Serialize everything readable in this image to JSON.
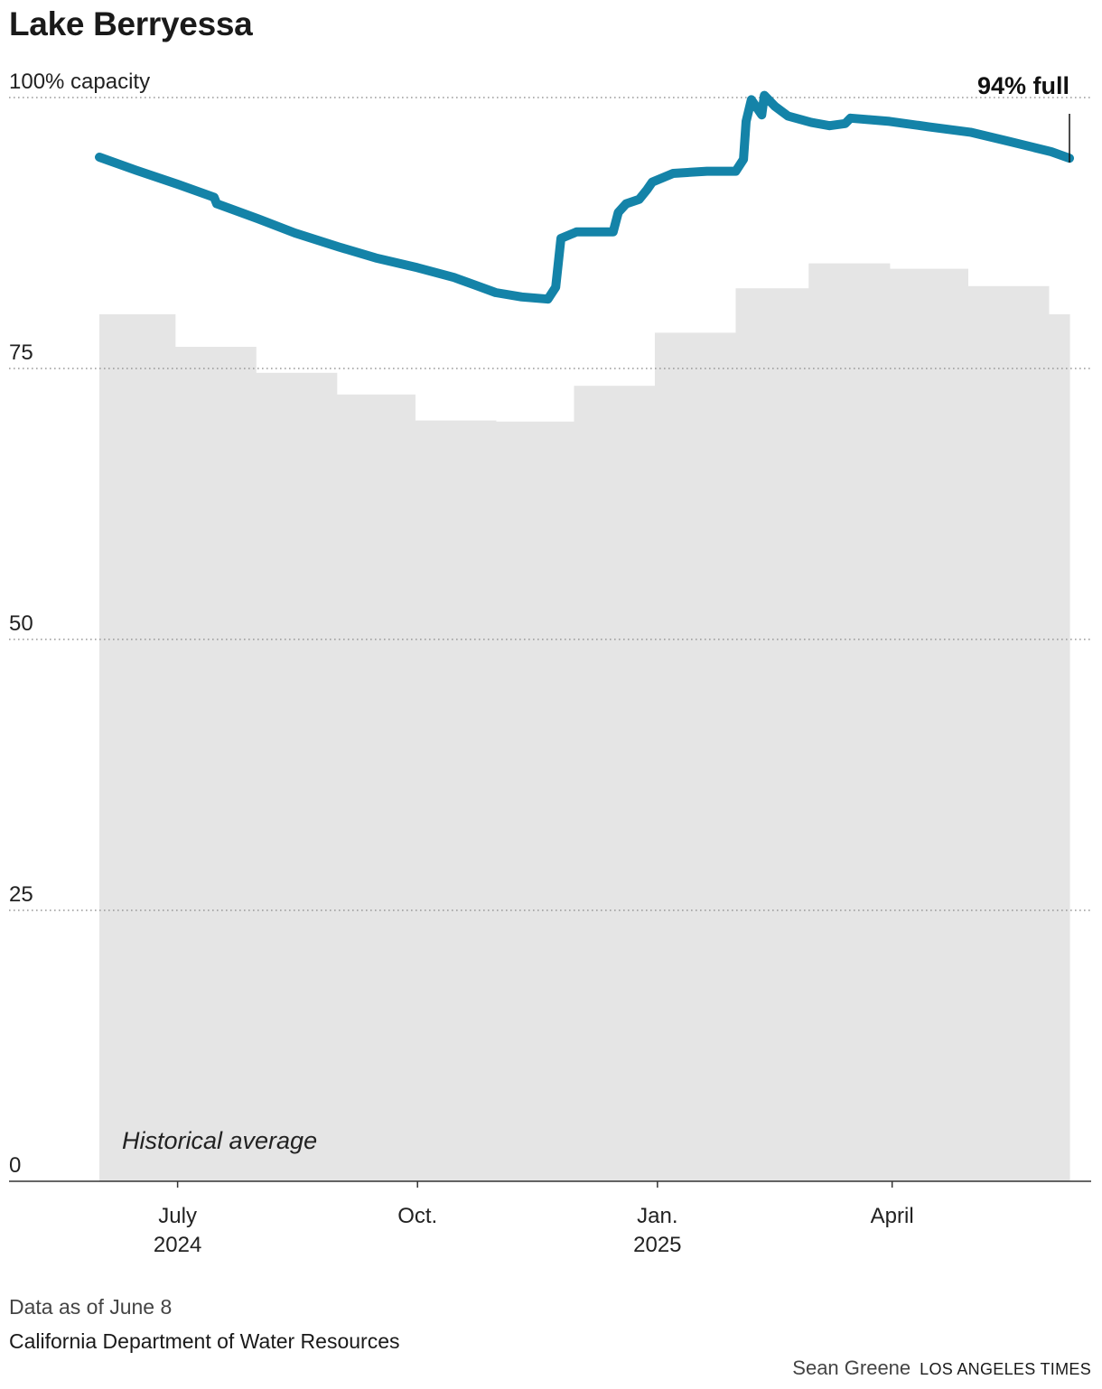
{
  "chart_data": {
    "type": "area",
    "title": "Lake Berryessa",
    "y_axis": {
      "range": [
        0,
        100
      ],
      "ticks": [
        {
          "value": 100,
          "label": "100% capacity"
        },
        {
          "value": 75,
          "label": "75"
        },
        {
          "value": 50,
          "label": "50"
        },
        {
          "value": 25,
          "label": "25"
        },
        {
          "value": 0,
          "label": "0"
        }
      ],
      "grid": "dotted"
    },
    "x_axis": {
      "range": [
        "2024-06-01",
        "2025-06-08"
      ],
      "ticks": [
        {
          "date": "2024-07-01",
          "line1": "July",
          "line2": "2024"
        },
        {
          "date": "2024-10-01",
          "line1": "Oct.",
          "line2": ""
        },
        {
          "date": "2025-01-01",
          "line1": "Jan.",
          "line2": "2025"
        },
        {
          "date": "2025-04-01",
          "line1": "April",
          "line2": ""
        }
      ]
    },
    "historical_average": {
      "label": "Historical average",
      "color": "#e5e5e5",
      "steps": [
        {
          "start": "2024-06-01",
          "end": "2024-06-30",
          "value": 80.0
        },
        {
          "start": "2024-06-30",
          "end": "2024-07-31",
          "value": 77.0
        },
        {
          "start": "2024-07-31",
          "end": "2024-08-31",
          "value": 74.6
        },
        {
          "start": "2024-08-31",
          "end": "2024-09-30",
          "value": 72.6
        },
        {
          "start": "2024-09-30",
          "end": "2024-10-31",
          "value": 70.2
        },
        {
          "start": "2024-10-31",
          "end": "2024-11-30",
          "value": 70.1
        },
        {
          "start": "2024-11-30",
          "end": "2024-12-31",
          "value": 73.4
        },
        {
          "start": "2024-12-31",
          "end": "2025-01-31",
          "value": 78.3
        },
        {
          "start": "2025-01-31",
          "end": "2025-02-28",
          "value": 82.4
        },
        {
          "start": "2025-02-28",
          "end": "2025-03-31",
          "value": 84.7
        },
        {
          "start": "2025-03-31",
          "end": "2025-04-30",
          "value": 84.2
        },
        {
          "start": "2025-04-30",
          "end": "2025-05-31",
          "value": 82.6
        },
        {
          "start": "2025-05-31",
          "end": "2025-06-08",
          "value": 80.0
        }
      ]
    },
    "series": [
      {
        "color": "#1483a8",
        "points": [
          [
            "2024-06-01",
            94.5
          ],
          [
            "2024-06-15",
            93.3
          ],
          [
            "2024-07-01",
            92.0
          ],
          [
            "2024-07-15",
            90.8
          ],
          [
            "2024-07-16",
            90.2
          ],
          [
            "2024-08-01",
            88.8
          ],
          [
            "2024-08-15",
            87.5
          ],
          [
            "2024-09-01",
            86.2
          ],
          [
            "2024-09-15",
            85.2
          ],
          [
            "2024-10-01",
            84.3
          ],
          [
            "2024-10-15",
            83.4
          ],
          [
            "2024-10-23",
            82.7
          ],
          [
            "2024-10-31",
            82.0
          ],
          [
            "2024-11-10",
            81.6
          ],
          [
            "2024-11-20",
            81.4
          ],
          [
            "2024-11-23",
            82.5
          ],
          [
            "2024-11-25",
            87.0
          ],
          [
            "2024-12-01",
            87.6
          ],
          [
            "2024-12-15",
            87.6
          ],
          [
            "2024-12-17",
            89.4
          ],
          [
            "2024-12-20",
            90.2
          ],
          [
            "2024-12-25",
            90.6
          ],
          [
            "2024-12-28",
            91.5
          ],
          [
            "2024-12-30",
            92.2
          ],
          [
            "2025-01-07",
            93.0
          ],
          [
            "2025-01-20",
            93.2
          ],
          [
            "2025-01-31",
            93.2
          ],
          [
            "2025-02-03",
            94.3
          ],
          [
            "2025-02-04",
            97.8
          ],
          [
            "2025-02-06",
            99.8
          ],
          [
            "2025-02-10",
            98.4
          ],
          [
            "2025-02-11",
            100.2
          ],
          [
            "2025-02-15",
            99.2
          ],
          [
            "2025-02-20",
            98.3
          ],
          [
            "2025-03-01",
            97.7
          ],
          [
            "2025-03-08",
            97.4
          ],
          [
            "2025-03-14",
            97.6
          ],
          [
            "2025-03-16",
            98.1
          ],
          [
            "2025-03-31",
            97.8
          ],
          [
            "2025-04-15",
            97.3
          ],
          [
            "2025-05-01",
            96.8
          ],
          [
            "2025-05-15",
            96.0
          ],
          [
            "2025-06-01",
            95.0
          ],
          [
            "2025-06-08",
            94.4
          ]
        ]
      }
    ],
    "annotation": {
      "label": "94% full",
      "date": "2025-06-08",
      "value": 94
    }
  },
  "notes": {
    "data_as_of": "Data as of June 8",
    "source": "California Department of Water Resources"
  },
  "credits": {
    "author": "Sean Greene",
    "publisher": "LOS ANGELES TIMES"
  }
}
